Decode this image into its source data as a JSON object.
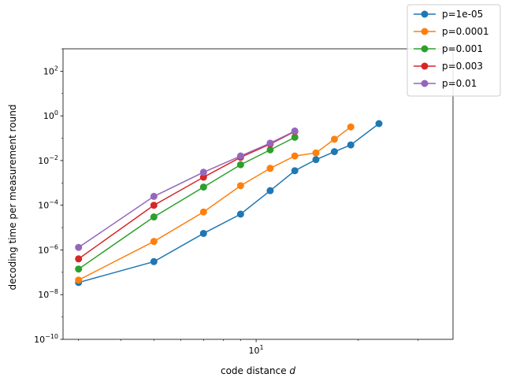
{
  "chart_data": {
    "type": "line",
    "xlabel": "code distance",
    "xlabel_var": "d",
    "ylabel": "decoding time per measurement round",
    "xscale": "log",
    "yscale": "log",
    "xlim": [
      2.7,
      38
    ],
    "ylim": [
      1e-10,
      1000
    ],
    "x_ticks": [
      {
        "value": 10,
        "base": "10",
        "exp": "1"
      }
    ],
    "y_ticks": [
      {
        "value": 1e-10,
        "base": "10",
        "exp": "−10"
      },
      {
        "value": 1e-08,
        "base": "10",
        "exp": "−8"
      },
      {
        "value": 1e-06,
        "base": "10",
        "exp": "−6"
      },
      {
        "value": 0.0001,
        "base": "10",
        "exp": "−4"
      },
      {
        "value": 0.01,
        "base": "10",
        "exp": "−2"
      },
      {
        "value": 1,
        "base": "10",
        "exp": "0"
      },
      {
        "value": 100,
        "base": "10",
        "exp": "2"
      }
    ],
    "legend_position": "top-right",
    "series": [
      {
        "name": "p=1e-05",
        "color": "#1f77b4",
        "x": [
          3,
          5,
          7,
          9,
          11,
          13,
          15,
          17,
          19,
          23
        ],
        "y": [
          3.5e-08,
          3e-07,
          5.5e-06,
          4e-05,
          0.00045,
          0.0035,
          0.011,
          0.025,
          0.05,
          0.45
        ]
      },
      {
        "name": "p=0.0001",
        "color": "#ff7f0e",
        "x": [
          3,
          5,
          7,
          9,
          11,
          13,
          15,
          17,
          19
        ],
        "y": [
          4.5e-08,
          2.4e-06,
          5e-05,
          0.00075,
          0.0045,
          0.016,
          0.022,
          0.09,
          0.32
        ]
      },
      {
        "name": "p=0.001",
        "color": "#2ca02c",
        "x": [
          3,
          5,
          7,
          9,
          11,
          13
        ],
        "y": [
          1.4e-07,
          3e-05,
          0.00065,
          0.0065,
          0.03,
          0.11
        ]
      },
      {
        "name": "p=0.003",
        "color": "#d62728",
        "x": [
          3,
          5,
          7,
          9,
          11,
          13
        ],
        "y": [
          4e-07,
          0.0001,
          0.0018,
          0.014,
          0.055,
          0.2
        ]
      },
      {
        "name": "p=0.01",
        "color": "#9467bd",
        "x": [
          3,
          5,
          7,
          9,
          11,
          13
        ],
        "y": [
          1.3e-06,
          0.00025,
          0.003,
          0.016,
          0.06,
          0.21
        ]
      }
    ]
  }
}
